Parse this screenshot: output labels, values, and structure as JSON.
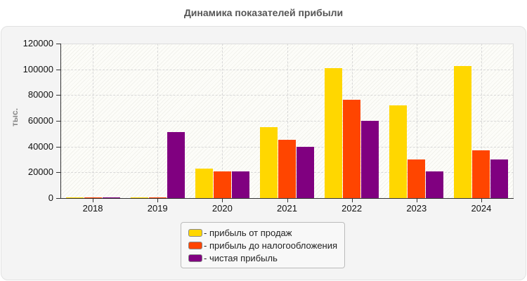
{
  "title": "Динамика показателей прибыли",
  "y_axis": {
    "title": "тыс.",
    "ticks": [
      "0",
      "20000",
      "40000",
      "60000",
      "80000",
      "100000",
      "120000"
    ]
  },
  "colors": {
    "sales": "#FFD700",
    "pretax": "#FF4500",
    "net": "#800080"
  },
  "legend": [
    {
      "label": "- прибыль от продаж",
      "color": "#FFD700"
    },
    {
      "label": "- прибыль до налогообложения",
      "color": "#FF4500"
    },
    {
      "label": "- чистая прибыль",
      "color": "#800080"
    }
  ],
  "chart_data": {
    "type": "bar",
    "title": "Динамика показателей прибыли",
    "xlabel": "",
    "ylabel": "тыс.",
    "ylim": [
      0,
      120000
    ],
    "grid": true,
    "legend_position": "bottom",
    "categories": [
      "2018",
      "2019",
      "2020",
      "2021",
      "2022",
      "2023",
      "2024"
    ],
    "series": [
      {
        "name": "прибыль от продаж",
        "color": "#FFD700",
        "values": [
          500,
          500,
          23000,
          55000,
          101000,
          72000,
          102500
        ]
      },
      {
        "name": "прибыль до налогообложения",
        "color": "#FF4500",
        "values": [
          500,
          500,
          21000,
          45500,
          76500,
          30000,
          37000
        ]
      },
      {
        "name": "чистая прибыль",
        "color": "#800080",
        "values": [
          500,
          51500,
          21000,
          40000,
          60000,
          21000,
          30000
        ]
      }
    ]
  }
}
